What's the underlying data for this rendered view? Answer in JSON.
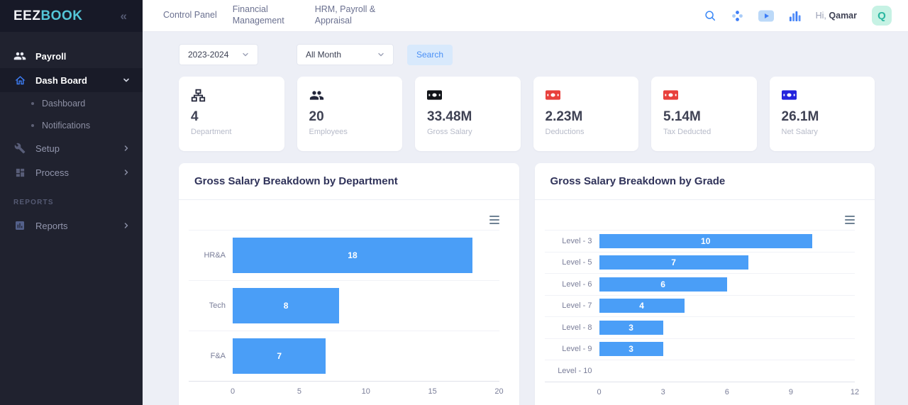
{
  "sidebar": {
    "logo_part1": "EEZ",
    "logo_part2": "BOOK",
    "collapse_glyph": "«",
    "items": {
      "payroll": {
        "label": "Payroll"
      },
      "dashboard": {
        "label": "Dash Board",
        "children": {
          "dashboard": {
            "label": "Dashboard"
          },
          "notifications": {
            "label": "Notifications"
          }
        }
      },
      "setup": {
        "label": "Setup"
      },
      "process": {
        "label": "Process"
      },
      "reports": {
        "label": "Reports"
      }
    },
    "section_label": "REPORTS"
  },
  "header": {
    "nav": {
      "control_panel": "Control Panel",
      "financial_management": "Financial Management",
      "hrm_payroll": "HRM, Payroll & Appraisal"
    },
    "greeting_prefix": "Hi,",
    "user_name": "Qamar",
    "avatar_letter": "Q"
  },
  "filters": {
    "year_value": "2023-2024",
    "month_value": "All Month",
    "search_label": "Search"
  },
  "stats": [
    {
      "value": "4",
      "label": "Department",
      "icon": "sitemap-icon",
      "icon_color": "#23263a"
    },
    {
      "value": "20",
      "label": "Employees",
      "icon": "users-icon",
      "icon_color": "#23263a"
    },
    {
      "value": "33.48M",
      "label": "Gross Salary",
      "icon": "money-icon",
      "icon_color": "#111318"
    },
    {
      "value": "2.23M",
      "label": "Deductions",
      "icon": "money-icon",
      "icon_color": "#e8403c"
    },
    {
      "value": "5.14M",
      "label": "Tax Deducted",
      "icon": "money-icon",
      "icon_color": "#e8403c"
    },
    {
      "value": "26.1M",
      "label": "Net Salary",
      "icon": "money-icon",
      "icon_color": "#2323dd"
    }
  ],
  "colors": {
    "accent_blue": "#3d7ef7",
    "bar_blue": "#4a9ef7",
    "logo_teal": "#54c6d8",
    "avatar_bg": "#c6f2e4",
    "avatar_text": "#2ab7a0",
    "search_btn_bg": "#d8e9fc",
    "search_btn_text": "#4a90f6"
  },
  "chart_data": [
    {
      "type": "bar",
      "orientation": "horizontal",
      "title": "Gross Salary Breakdown by Department",
      "categories": [
        "HR&A",
        "Tech",
        "F&A"
      ],
      "values": [
        18,
        8,
        7
      ],
      "xlim": [
        0,
        20
      ],
      "xticks": [
        0,
        5,
        10,
        15,
        20
      ],
      "bar_color": "#4a9ef7",
      "grid": true,
      "data_labels": "white, centered in bar"
    },
    {
      "type": "bar",
      "orientation": "horizontal",
      "title": "Gross Salary Breakdown by Grade",
      "categories": [
        "Level - 3",
        "Level - 5",
        "Level - 6",
        "Level - 7",
        "Level - 8",
        "Level - 9",
        "Level - 10"
      ],
      "values": [
        10,
        7,
        6,
        4,
        3,
        3,
        0
      ],
      "xlim": [
        0,
        12
      ],
      "xticks": [
        0,
        3,
        6,
        9,
        12
      ],
      "bar_color": "#4a9ef7",
      "grid": true,
      "data_labels": "white, centered in bar"
    }
  ]
}
